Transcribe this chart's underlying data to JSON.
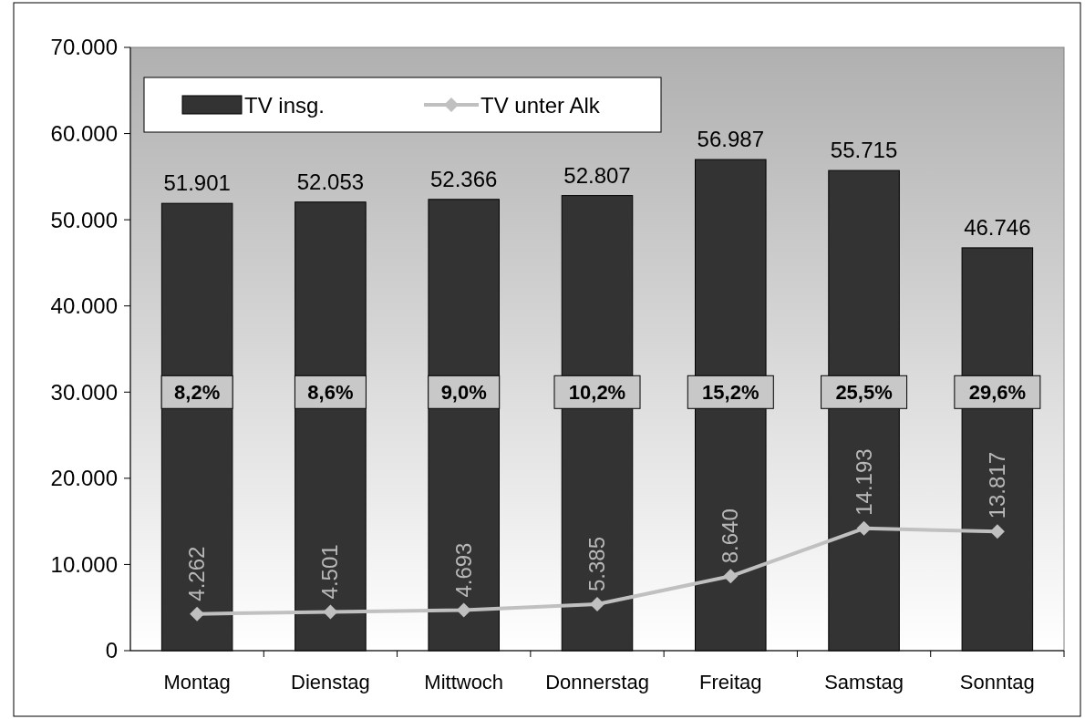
{
  "chart_data": {
    "type": "bar",
    "categories": [
      "Montag",
      "Dienstag",
      "Mittwoch",
      "Donnerstag",
      "Freitag",
      "Samstag",
      "Sonntag"
    ],
    "series": [
      {
        "name": "TV insg.",
        "color": "#333333",
        "values": [
          51901,
          52053,
          52366,
          52807,
          56987,
          55715,
          46746
        ],
        "value_labels": [
          "51.901",
          "52.053",
          "52.366",
          "52.807",
          "56.987",
          "55.715",
          "46.746"
        ]
      },
      {
        "name": "TV unter Alk",
        "type": "line",
        "color": "#c0c0c0",
        "values": [
          4262,
          4501,
          4693,
          5385,
          8640,
          14193,
          13817
        ],
        "value_labels": [
          "4.262",
          "4.501",
          "4.693",
          "5.385",
          "8.640",
          "14.193",
          "13.817"
        ]
      }
    ],
    "ylim": [
      0,
      70000
    ],
    "yticks": [
      0,
      {
        "value": 10000,
        "label": "10.000"
      },
      {
        "value": 20000,
        "label": "20.000"
      },
      {
        "value": 30000,
        "label": "30.000"
      },
      {
        "value": 40000,
        "label": "40.000"
      },
      {
        "value": 50000,
        "label": "50.000"
      },
      {
        "value": 60000,
        "label": "60.000"
      },
      {
        "value": 70000,
        "label": "70.000"
      }
    ],
    "annotations": [
      "8,2%",
      "8,6%",
      "9,0%",
      "10,2%",
      "15,2%",
      "25,5%",
      "29,6%"
    ],
    "legend": "top left",
    "marker": "diamond",
    "grid": false
  }
}
